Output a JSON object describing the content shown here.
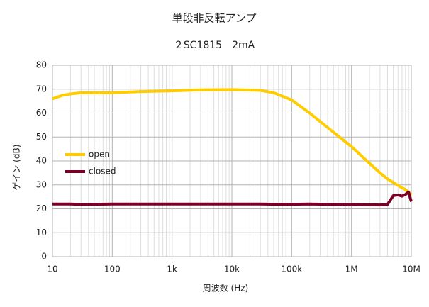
{
  "chart_data": {
    "type": "line",
    "title": "単段非反転アンプ",
    "subtitle": "２SC1815　2mA",
    "x_label": "周波数 (Hz)",
    "y_label": "ゲイン (dB)",
    "x": [
      10,
      15,
      20,
      30,
      100,
      300,
      1000,
      3000,
      10000,
      30000,
      50000,
      100000,
      200000,
      500000,
      1000000,
      2000000,
      3000000,
      4000000,
      5000000,
      6000000,
      7000000,
      8000000,
      9000000,
      10000000
    ],
    "series": [
      {
        "name": "open",
        "color": "#ffcc00",
        "values": [
          66,
          67.5,
          68,
          68.5,
          68.5,
          69,
          69.3,
          69.7,
          69.8,
          69.5,
          68.5,
          65.5,
          60,
          52,
          46,
          39,
          35,
          32.5,
          31,
          29.8,
          28.8,
          28,
          27,
          26
        ]
      },
      {
        "name": "closed",
        "color": "#7b0026",
        "values": [
          22,
          22,
          22,
          21.8,
          22,
          22,
          22,
          22,
          22,
          22,
          21.9,
          21.9,
          22,
          21.8,
          21.8,
          21.7,
          21.6,
          21.8,
          25.5,
          25.8,
          25.3,
          26,
          27,
          23
        ]
      }
    ],
    "xlim": [
      10,
      10000000
    ],
    "x_log": true,
    "xticks": [
      10,
      100,
      {
        "value": 1000,
        "label": "1k"
      },
      {
        "value": 10000,
        "label": "10k"
      },
      {
        "value": 100000,
        "label": "100k"
      },
      {
        "value": 1000000,
        "label": "1M"
      },
      {
        "value": 10000000,
        "label": "10M"
      }
    ],
    "ylim": [
      0,
      80
    ],
    "yticks": [
      0,
      10,
      20,
      30,
      40,
      50,
      60,
      70,
      80
    ],
    "grid": true,
    "minor_grid": true,
    "legend": "left"
  }
}
